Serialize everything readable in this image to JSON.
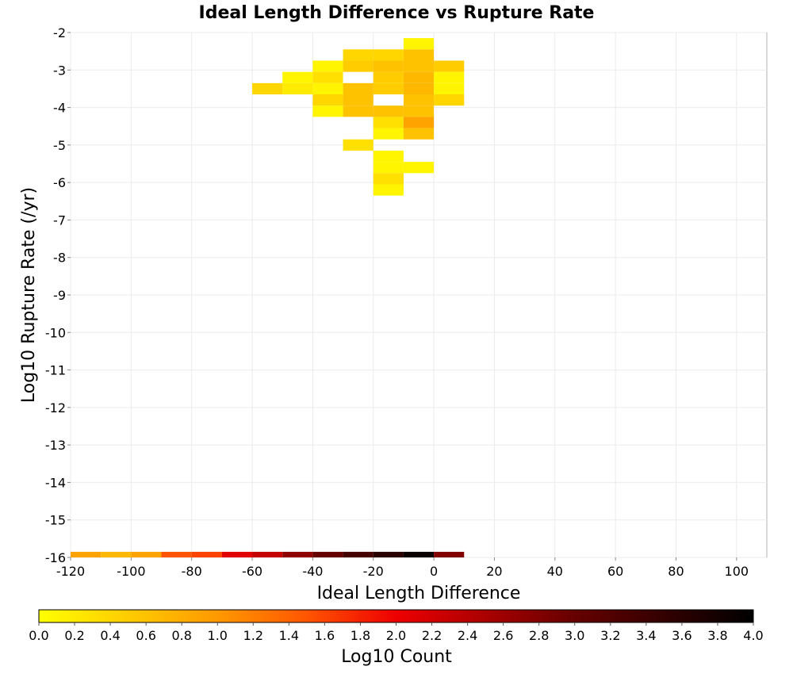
{
  "chart_data": {
    "type": "heatmap",
    "title": "Ideal Length Difference vs Rupture Rate",
    "xlabel": "Ideal Length Difference",
    "ylabel": "Log10 Rupture Rate (/yr)",
    "xlim": [
      -120,
      110
    ],
    "ylim": [
      -16,
      -2
    ],
    "x_ticks": [
      "-120",
      "-100",
      "-80",
      "-60",
      "-40",
      "-20",
      "0",
      "20",
      "40",
      "60",
      "80",
      "100"
    ],
    "y_ticks": [
      "-2",
      "-3",
      "-4",
      "-5",
      "-6",
      "-7",
      "-8",
      "-9",
      "-10",
      "-11",
      "-12",
      "-13",
      "-14",
      "-15",
      "-16"
    ],
    "grid": true,
    "x_bin_width": 10,
    "y_bin_height": 0.3,
    "colorbar": {
      "label": "Log10 Count",
      "range": [
        0.0,
        4.0
      ],
      "ticks": [
        "0.0",
        "0.2",
        "0.4",
        "0.6",
        "0.8",
        "1.0",
        "1.2",
        "1.4",
        "1.6",
        "1.8",
        "2.0",
        "2.2",
        "2.4",
        "2.6",
        "2.8",
        "3.0",
        "3.2",
        "3.4",
        "3.6",
        "3.8",
        "4.0"
      ],
      "colors": [
        "#ffff00",
        "#ffcc00",
        "#ff9900",
        "#ff5500",
        "#ee0000",
        "#aa0000",
        "#660000",
        "#330000",
        "#000000"
      ]
    },
    "cells": [
      {
        "x": -10,
        "y": -2.3,
        "v": 0.1
      },
      {
        "x": -30,
        "y": -2.6,
        "v": 0.4
      },
      {
        "x": -20,
        "y": -2.6,
        "v": 0.4
      },
      {
        "x": -10,
        "y": -2.6,
        "v": 0.6
      },
      {
        "x": -40,
        "y": -2.9,
        "v": 0.1
      },
      {
        "x": -30,
        "y": -2.9,
        "v": 0.5
      },
      {
        "x": -20,
        "y": -2.9,
        "v": 0.6
      },
      {
        "x": -10,
        "y": -2.9,
        "v": 0.6
      },
      {
        "x": 0,
        "y": -2.9,
        "v": 0.5
      },
      {
        "x": -50,
        "y": -3.2,
        "v": 0.1
      },
      {
        "x": -40,
        "y": -3.2,
        "v": 0.3
      },
      {
        "x": -20,
        "y": -3.2,
        "v": 0.5
      },
      {
        "x": -10,
        "y": -3.2,
        "v": 0.7
      },
      {
        "x": 0,
        "y": -3.2,
        "v": 0.1
      },
      {
        "x": -60,
        "y": -3.5,
        "v": 0.4
      },
      {
        "x": -50,
        "y": -3.5,
        "v": 0.2
      },
      {
        "x": -40,
        "y": -3.5,
        "v": 0.1
      },
      {
        "x": -30,
        "y": -3.5,
        "v": 0.6
      },
      {
        "x": -20,
        "y": -3.5,
        "v": 0.5
      },
      {
        "x": -10,
        "y": -3.5,
        "v": 0.7
      },
      {
        "x": 0,
        "y": -3.5,
        "v": 0.1
      },
      {
        "x": -40,
        "y": -3.8,
        "v": 0.4
      },
      {
        "x": -30,
        "y": -3.8,
        "v": 0.6
      },
      {
        "x": -10,
        "y": -3.8,
        "v": 0.6
      },
      {
        "x": 0,
        "y": -3.8,
        "v": 0.4
      },
      {
        "x": -40,
        "y": -4.1,
        "v": 0.1
      },
      {
        "x": -30,
        "y": -4.1,
        "v": 0.6
      },
      {
        "x": -20,
        "y": -4.1,
        "v": 0.6
      },
      {
        "x": -10,
        "y": -4.1,
        "v": 0.6
      },
      {
        "x": -20,
        "y": -4.4,
        "v": 0.3
      },
      {
        "x": -10,
        "y": -4.4,
        "v": 0.9
      },
      {
        "x": -20,
        "y": -4.7,
        "v": 0.1
      },
      {
        "x": -10,
        "y": -4.7,
        "v": 0.6
      },
      {
        "x": -30,
        "y": -5.0,
        "v": 0.3
      },
      {
        "x": -20,
        "y": -5.3,
        "v": 0.1
      },
      {
        "x": -20,
        "y": -5.6,
        "v": 0.1
      },
      {
        "x": -10,
        "y": -5.6,
        "v": 0.1
      },
      {
        "x": -20,
        "y": -5.9,
        "v": 0.3
      },
      {
        "x": -20,
        "y": -6.2,
        "v": 0.1
      },
      {
        "x": -120,
        "y": -16.0,
        "v": 0.9
      },
      {
        "x": -110,
        "y": -16.0,
        "v": 0.7
      },
      {
        "x": -100,
        "y": -16.0,
        "v": 0.9
      },
      {
        "x": -90,
        "y": -16.0,
        "v": 1.5
      },
      {
        "x": -80,
        "y": -16.0,
        "v": 1.6
      },
      {
        "x": -70,
        "y": -16.0,
        "v": 2.1
      },
      {
        "x": -60,
        "y": -16.0,
        "v": 2.3
      },
      {
        "x": -50,
        "y": -16.0,
        "v": 2.7
      },
      {
        "x": -40,
        "y": -16.0,
        "v": 3.0
      },
      {
        "x": -30,
        "y": -16.0,
        "v": 3.3
      },
      {
        "x": -20,
        "y": -16.0,
        "v": 3.6
      },
      {
        "x": -10,
        "y": -16.0,
        "v": 3.9
      },
      {
        "x": 0,
        "y": -16.0,
        "v": 2.8
      }
    ]
  }
}
